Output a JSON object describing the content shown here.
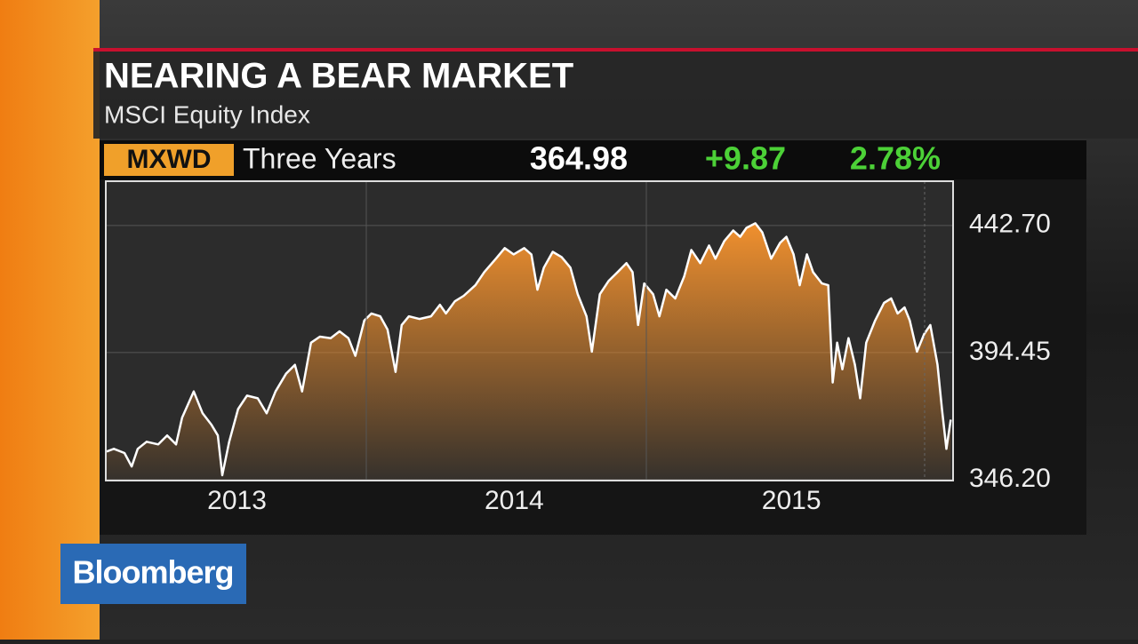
{
  "header": {
    "title": "NEARING A BEAR MARKET",
    "subtitle": "MSCI Equity Index",
    "ticker": "MXWD",
    "period": "Three Years",
    "last": "364.98",
    "change": "+9.87",
    "change_percent": "2.78%"
  },
  "logo": "Bloomberg",
  "chart_data": {
    "type": "area",
    "color": "#ffffff",
    "fill_color": "#e8862a",
    "x": [
      2012.53,
      2012.556,
      2012.594,
      2012.62,
      2012.642,
      2012.674,
      2012.716,
      2012.748,
      2012.78,
      2012.802,
      2012.844,
      2012.876,
      2012.908,
      2012.931,
      2012.947,
      2012.972,
      2013.004,
      2013.036,
      2013.075,
      2013.107,
      2013.139,
      2013.177,
      2013.209,
      2013.235,
      2013.267,
      2013.299,
      2013.338,
      2013.37,
      2013.402,
      2013.427,
      2013.459,
      2013.485,
      2013.517,
      2013.543,
      2013.572,
      2013.594,
      2013.62,
      2013.658,
      2013.7,
      2013.732,
      2013.754,
      2013.786,
      2013.818,
      2013.86,
      2013.892,
      2013.934,
      2013.966,
      2013.998,
      2014.036,
      2014.062,
      2014.084,
      2014.107,
      2014.139,
      2014.171,
      2014.203,
      2014.229,
      2014.261,
      2014.28,
      2014.309,
      2014.341,
      2014.373,
      2014.405,
      2014.427,
      2014.447,
      2014.469,
      2014.501,
      2014.524,
      2014.549,
      2014.581,
      2014.613,
      2014.639,
      2014.671,
      2014.703,
      2014.726,
      2014.758,
      2014.79,
      2014.815,
      2014.838,
      2014.87,
      2014.895,
      2014.927,
      2014.959,
      2014.982,
      2015.008,
      2015.03,
      2015.056,
      2015.078,
      2015.11,
      2015.133,
      2015.149,
      2015.165,
      2015.184,
      2015.206,
      2015.229,
      2015.248,
      2015.27,
      2015.302,
      2015.334,
      2015.36,
      2015.383,
      2015.408,
      2015.427,
      2015.453,
      2015.479,
      2015.501,
      2015.527,
      2015.543,
      2015.559,
      2015.575
    ],
    "values": [
      356.9,
      357.9,
      356.3,
      351.2,
      357.9,
      360.6,
      359.6,
      363.0,
      359.6,
      369.7,
      379.7,
      371.4,
      367.0,
      363.0,
      347.9,
      360.6,
      373.0,
      378.1,
      377.1,
      371.4,
      379.7,
      386.4,
      389.8,
      379.7,
      398.2,
      400.5,
      399.9,
      402.5,
      399.9,
      393.2,
      406.6,
      409.3,
      408.2,
      403.2,
      387.1,
      404.9,
      408.2,
      407.2,
      408.2,
      412.6,
      409.3,
      413.9,
      416.0,
      420.0,
      425.0,
      430.1,
      434.1,
      431.7,
      434.1,
      431.7,
      418.3,
      426.7,
      432.7,
      430.7,
      426.7,
      416.6,
      408.2,
      394.8,
      416.6,
      421.7,
      425.0,
      428.4,
      425.0,
      404.9,
      420.7,
      416.6,
      408.2,
      418.3,
      415.0,
      423.3,
      433.4,
      428.4,
      435.1,
      430.1,
      436.8,
      440.8,
      438.4,
      441.8,
      443.5,
      440.1,
      430.1,
      436.1,
      438.4,
      431.7,
      420.0,
      431.7,
      425.0,
      420.7,
      420.0,
      383.1,
      398.2,
      388.1,
      399.9,
      389.8,
      377.1,
      398.2,
      406.6,
      413.3,
      415.0,
      409.3,
      411.6,
      406.6,
      394.8,
      401.5,
      404.9,
      389.8,
      373.0,
      357.9,
      369.0
    ],
    "xlim": [
      2012.53,
      2015.58
    ],
    "xticks": [
      2013,
      2014,
      2015
    ],
    "ylim": [
      346.2,
      459.5
    ],
    "yticks": [
      {
        "value": 346.2,
        "label": "346.20"
      },
      {
        "value": 394.45,
        "label": "394.45"
      },
      {
        "value": 442.7,
        "label": "442.70"
      }
    ],
    "grid": true
  }
}
